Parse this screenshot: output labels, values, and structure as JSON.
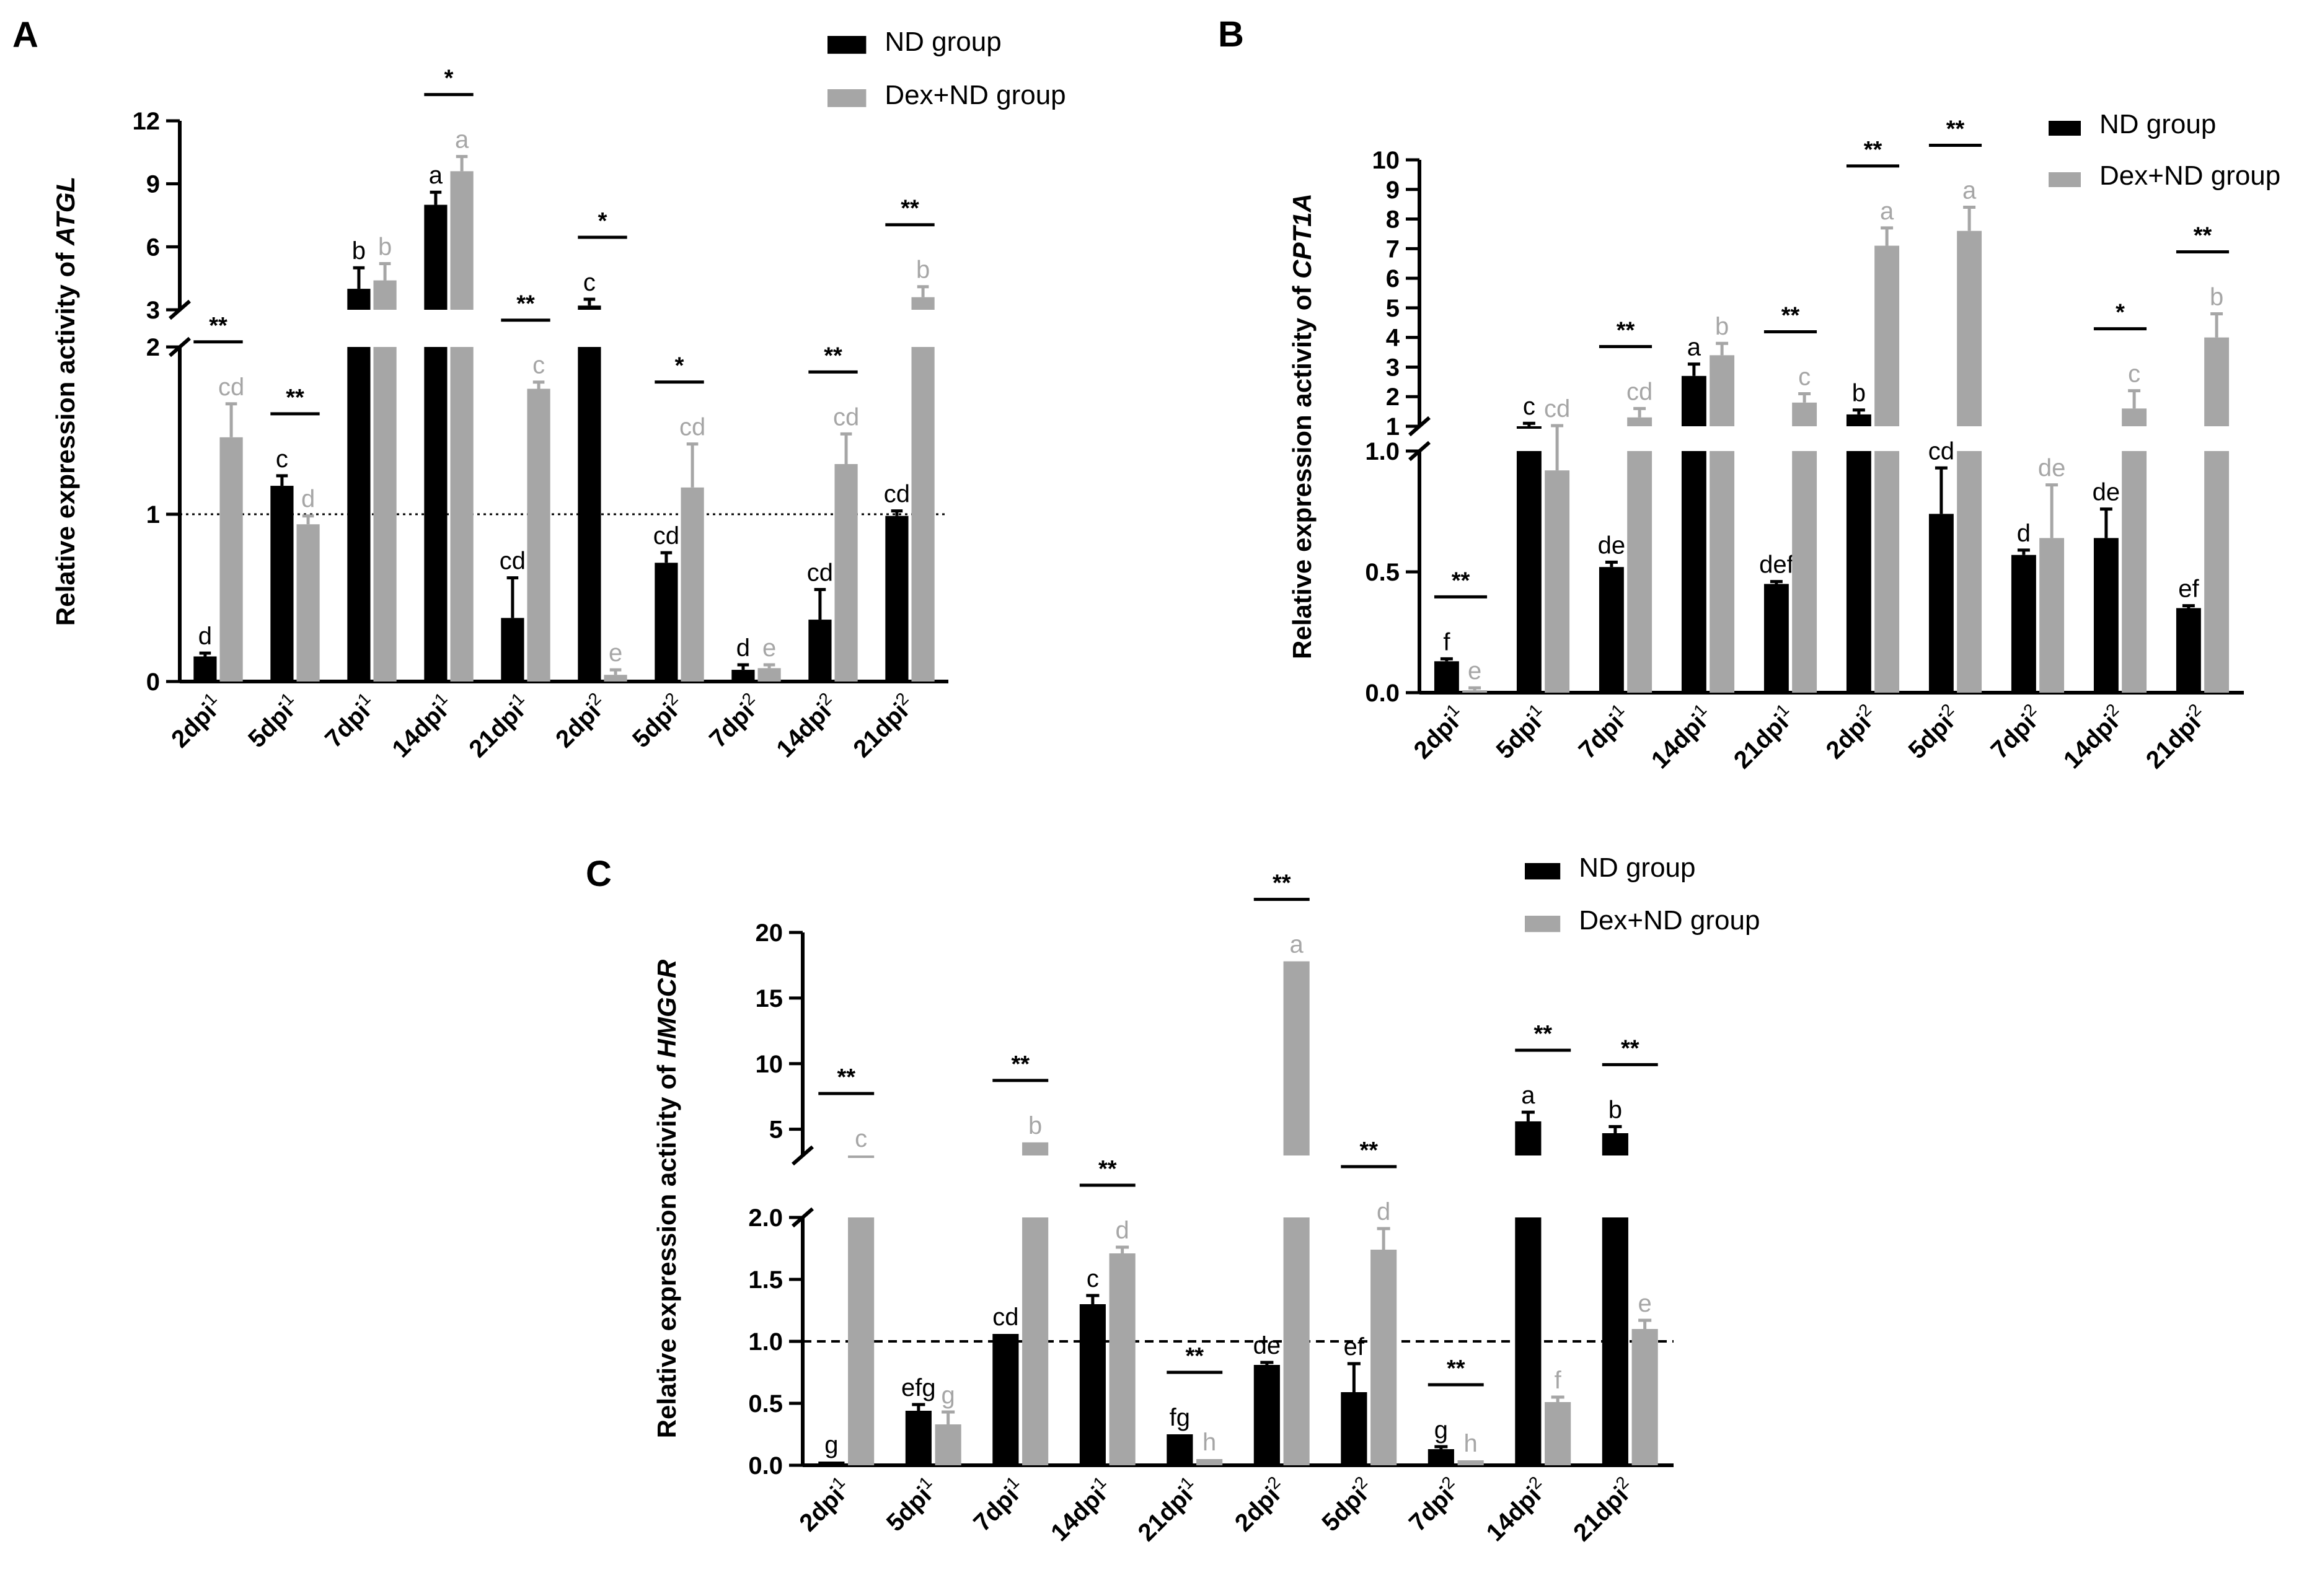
{
  "colors": {
    "nd": "#000000",
    "dex": "#a6a6a6",
    "axis": "#000000",
    "sig": "#000000"
  },
  "legend": {
    "nd_label": "ND group",
    "dex_label": "Dex+ND group"
  },
  "chart_data": [
    {
      "panel": "A",
      "type": "bar",
      "ylabel_prefix": "Relative expression activity of ",
      "ylabel_gene": "ATGL",
      "legend_position": "top-right",
      "categories": [
        {
          "base": "2dpi",
          "sup": "1"
        },
        {
          "base": "5dpi",
          "sup": "1"
        },
        {
          "base": "7dpi",
          "sup": "1"
        },
        {
          "base": "14dpi",
          "sup": "1"
        },
        {
          "base": "21dpi",
          "sup": "1"
        },
        {
          "base": "2dpi",
          "sup": "2"
        },
        {
          "base": "5dpi",
          "sup": "2"
        },
        {
          "base": "7dpi",
          "sup": "2"
        },
        {
          "base": "14dpi",
          "sup": "2"
        },
        {
          "base": "21dpi",
          "sup": "2"
        }
      ],
      "axis_segments": [
        {
          "range": [
            0,
            2
          ],
          "ticks": [
            0,
            1,
            2
          ],
          "tick_labels": [
            "0",
            "1",
            "2"
          ]
        },
        {
          "range": [
            3,
            12
          ],
          "ticks": [
            3,
            6,
            9,
            12
          ],
          "tick_labels": [
            "3",
            "6",
            "9",
            "12"
          ]
        }
      ],
      "reference_line": 1,
      "reference_style": "dotted",
      "series": [
        {
          "name": "ND group",
          "values": [
            0.15,
            1.17,
            4.0,
            8.0,
            0.38,
            3.2,
            0.71,
            0.07,
            0.37,
            0.99
          ],
          "errors": [
            0.02,
            0.06,
            1.0,
            0.6,
            0.24,
            0.3,
            0.06,
            0.03,
            0.18,
            0.03
          ],
          "letters": [
            "d",
            "c",
            "b",
            "a",
            "cd",
            "c",
            "cd",
            "d",
            "cd",
            "cd"
          ]
        },
        {
          "name": "Dex+ND group",
          "values": [
            1.46,
            0.94,
            4.4,
            9.6,
            1.75,
            0.04,
            1.16,
            0.08,
            1.3,
            3.6
          ],
          "errors": [
            0.2,
            0.05,
            0.8,
            0.7,
            0.04,
            0.03,
            0.26,
            0.02,
            0.18,
            0.5
          ],
          "letters": [
            "cd",
            "d",
            "b",
            "a",
            "c",
            "e",
            "cd",
            "e",
            "cd",
            "b"
          ]
        }
      ],
      "significance": [
        "**",
        "**",
        "",
        "*",
        "**",
        "*",
        "*",
        "",
        "**",
        "**"
      ]
    },
    {
      "panel": "B",
      "type": "bar",
      "ylabel_prefix": "Relative expression activity of ",
      "ylabel_gene": "CPT1A",
      "legend_position": "top-right",
      "categories": [
        {
          "base": "2dpi",
          "sup": "1"
        },
        {
          "base": "5dpi",
          "sup": "1"
        },
        {
          "base": "7dpi",
          "sup": "1"
        },
        {
          "base": "14dpi",
          "sup": "1"
        },
        {
          "base": "21dpi",
          "sup": "1"
        },
        {
          "base": "2dpi",
          "sup": "2"
        },
        {
          "base": "5dpi",
          "sup": "2"
        },
        {
          "base": "7dpi",
          "sup": "2"
        },
        {
          "base": "14dpi",
          "sup": "2"
        },
        {
          "base": "21dpi",
          "sup": "2"
        }
      ],
      "axis_segments": [
        {
          "range": [
            0,
            1
          ],
          "ticks": [
            0,
            0.5,
            1
          ],
          "tick_labels": [
            "0.0",
            "0.5",
            "1.0"
          ]
        },
        {
          "range": [
            1,
            10
          ],
          "ticks": [
            1,
            2,
            3,
            4,
            5,
            6,
            7,
            8,
            9,
            10
          ],
          "tick_labels": [
            "1",
            "2",
            "3",
            "4",
            "5",
            "6",
            "7",
            "8",
            "9",
            "10"
          ]
        }
      ],
      "reference_line": null,
      "series": [
        {
          "name": "ND group",
          "values": [
            0.13,
            1.0,
            0.52,
            2.7,
            0.45,
            1.4,
            0.74,
            0.57,
            0.64,
            0.35
          ],
          "errors": [
            0.01,
            0.1,
            0.02,
            0.4,
            0.01,
            0.15,
            0.19,
            0.02,
            0.12,
            0.01
          ],
          "letters": [
            "f",
            "c",
            "de",
            "a",
            "def",
            "b",
            "cd",
            "d",
            "de",
            "ef"
          ]
        },
        {
          "name": "Dex+ND group",
          "values": [
            0.01,
            0.92,
            1.3,
            3.4,
            1.8,
            7.1,
            7.6,
            0.64,
            1.6,
            4.0
          ],
          "errors": [
            0.01,
            0.1,
            0.3,
            0.4,
            0.3,
            0.6,
            0.8,
            0.22,
            0.6,
            0.8
          ],
          "letters": [
            "e",
            "cd",
            "cd",
            "b",
            "c",
            "a",
            "a",
            "de",
            "c",
            "b"
          ]
        }
      ],
      "significance": [
        "**",
        "",
        "**",
        "",
        "**",
        "**",
        "**",
        "",
        "*",
        "**"
      ]
    },
    {
      "panel": "C",
      "type": "bar",
      "ylabel_prefix": "Relative expression activity of ",
      "ylabel_gene": "HMGCR",
      "legend_position": "top-right",
      "categories": [
        {
          "base": "2dpi",
          "sup": "1"
        },
        {
          "base": "5dpi",
          "sup": "1"
        },
        {
          "base": "7dpi",
          "sup": "1"
        },
        {
          "base": "14dpi",
          "sup": "1"
        },
        {
          "base": "21dpi",
          "sup": "1"
        },
        {
          "base": "2dpi",
          "sup": "2"
        },
        {
          "base": "5dpi",
          "sup": "2"
        },
        {
          "base": "7dpi",
          "sup": "2"
        },
        {
          "base": "14dpi",
          "sup": "2"
        },
        {
          "base": "21dpi",
          "sup": "2"
        }
      ],
      "axis_segments": [
        {
          "range": [
            0,
            2
          ],
          "ticks": [
            0,
            0.5,
            1,
            1.5,
            2
          ],
          "tick_labels": [
            "0.0",
            "0.5",
            "1.0",
            "1.5",
            "2.0"
          ]
        },
        {
          "range": [
            3,
            20
          ],
          "ticks": [
            5,
            10,
            15,
            20
          ],
          "tick_labels": [
            "5",
            "10",
            "15",
            "20"
          ]
        }
      ],
      "reference_line": 1,
      "reference_style": "dashed",
      "series": [
        {
          "name": "ND group",
          "values": [
            0.03,
            0.44,
            1.06,
            1.3,
            0.25,
            0.81,
            0.59,
            0.13,
            5.6,
            4.7
          ],
          "errors": [
            0.0,
            0.05,
            0.0,
            0.07,
            0.0,
            0.02,
            0.23,
            0.02,
            0.7,
            0.5
          ],
          "letters": [
            "g",
            "efg",
            "cd",
            "c",
            "fg",
            "de",
            "ef",
            "g",
            "a",
            "b"
          ]
        },
        {
          "name": "Dex+ND group",
          "values": [
            3.0,
            0.33,
            4.0,
            1.71,
            0.05,
            17.8,
            1.74,
            0.04,
            0.51,
            1.1
          ],
          "errors": [
            0.0,
            0.1,
            0.0,
            0.05,
            0.0,
            0.0,
            0.17,
            0.0,
            0.04,
            0.07
          ],
          "letters": [
            "c",
            "g",
            "b",
            "d",
            "h",
            "a",
            "d",
            "h",
            "f",
            "e"
          ]
        }
      ],
      "significance": [
        "**",
        "",
        "**",
        "**",
        "**",
        "**",
        "**",
        "**",
        "**",
        "**"
      ]
    }
  ]
}
